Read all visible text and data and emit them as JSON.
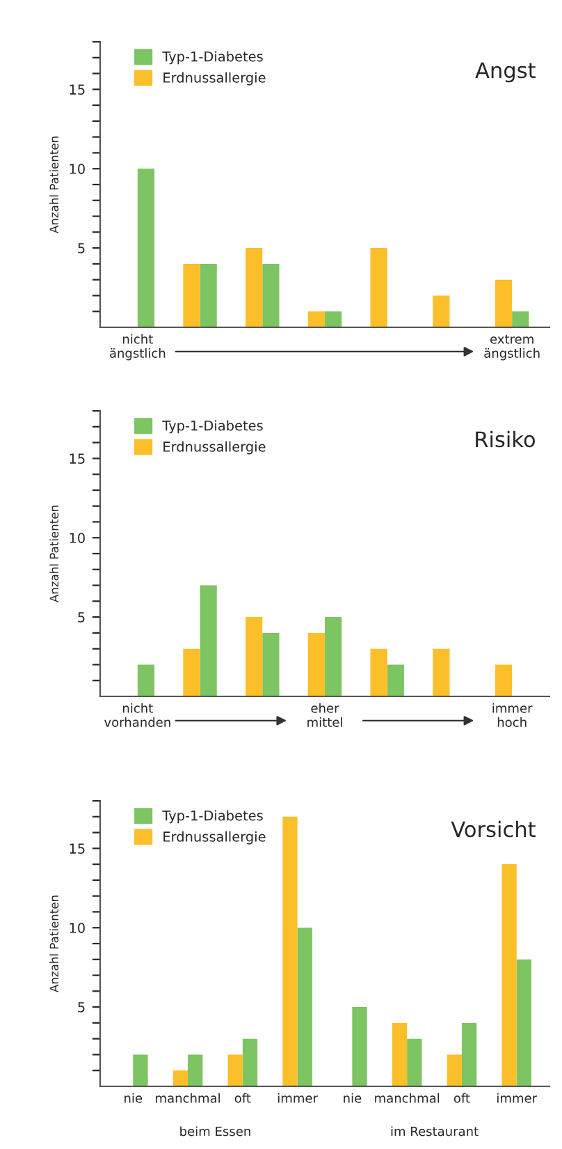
{
  "chart_data": [
    {
      "type": "bar",
      "title": "Angst",
      "ylabel": "Anzahl Patienten",
      "categories": [
        "nicht ängstlich",
        null,
        null,
        null,
        null,
        null,
        "extrem ängstlich"
      ],
      "ylim": [
        0,
        18
      ],
      "yticks": [
        {
          "value": 1,
          "label": null
        },
        {
          "value": 2,
          "label": null
        },
        {
          "value": 3,
          "label": null
        },
        {
          "value": 4,
          "label": null
        },
        5,
        {
          "value": 6,
          "label": null
        },
        {
          "value": 7,
          "label": null
        },
        {
          "value": 8,
          "label": null
        },
        {
          "value": 9,
          "label": null
        },
        10,
        {
          "value": 11,
          "label": null
        },
        {
          "value": 12,
          "label": null
        },
        {
          "value": 13,
          "label": null
        },
        {
          "value": 14,
          "label": null
        },
        15,
        {
          "value": 16,
          "label": null
        },
        {
          "value": 17,
          "label": null
        },
        {
          "value": 18,
          "label": null
        }
      ],
      "legend": "top left",
      "grid": false,
      "series": [
        {
          "name": "Typ-1-Diabetes",
          "color": "#7dc462",
          "values": [
            10,
            4,
            4,
            1,
            null,
            null,
            1
          ]
        },
        {
          "name": "Erdnussallergie",
          "color": "#fbbf2a",
          "values": [
            null,
            4,
            5,
            1,
            5,
            2,
            3
          ]
        }
      ]
    },
    {
      "type": "bar",
      "title": "Risiko",
      "ylabel": "Anzahl Patienten",
      "categories": [
        "nicht vorhanden",
        null,
        null,
        "eher mittel",
        null,
        null,
        "immer hoch"
      ],
      "ylim": [
        0,
        18
      ],
      "yticks": [
        {
          "value": 1,
          "label": null
        },
        {
          "value": 2,
          "label": null
        },
        {
          "value": 3,
          "label": null
        },
        {
          "value": 4,
          "label": null
        },
        5,
        {
          "value": 6,
          "label": null
        },
        {
          "value": 7,
          "label": null
        },
        {
          "value": 8,
          "label": null
        },
        {
          "value": 9,
          "label": null
        },
        10,
        {
          "value": 11,
          "label": null
        },
        {
          "value": 12,
          "label": null
        },
        {
          "value": 13,
          "label": null
        },
        {
          "value": 14,
          "label": null
        },
        15,
        {
          "value": 16,
          "label": null
        },
        {
          "value": 17,
          "label": null
        },
        {
          "value": 18,
          "label": null
        }
      ],
      "legend": "top left",
      "grid": false,
      "series": [
        {
          "name": "Typ-1-Diabetes",
          "color": "#7dc462",
          "values": [
            2,
            7,
            4,
            5,
            2,
            null,
            null
          ]
        },
        {
          "name": "Erdnussallergie",
          "color": "#fbbf2a",
          "values": [
            null,
            3,
            5,
            4,
            3,
            3,
            2
          ]
        }
      ]
    },
    {
      "type": "bar",
      "title": "Vorsicht",
      "ylabel": "Anzahl Patienten",
      "categories": [
        "nie",
        "manchmal",
        "oft",
        "immer",
        "nie",
        "manchmal",
        "oft",
        "immer"
      ],
      "ylim": [
        0,
        18
      ],
      "yticks": [
        {
          "value": 1,
          "label": null
        },
        {
          "value": 2,
          "label": null
        },
        {
          "value": 3,
          "label": null
        },
        {
          "value": 4,
          "label": null
        },
        5,
        {
          "value": 6,
          "label": null
        },
        {
          "value": 7,
          "label": null
        },
        {
          "value": 8,
          "label": null
        },
        {
          "value": 9,
          "label": null
        },
        10,
        {
          "value": 11,
          "label": null
        },
        {
          "value": 12,
          "label": null
        },
        {
          "value": 13,
          "label": null
        },
        {
          "value": 14,
          "label": null
        },
        15,
        {
          "value": 16,
          "label": null
        },
        {
          "value": 17,
          "label": null
        },
        {
          "value": 18,
          "label": null
        }
      ],
      "legend": "top left",
      "grid": false,
      "annotations": [
        "beim Essen",
        "im Restaurant"
      ],
      "series": [
        {
          "name": "Typ-1-Diabetes",
          "color": "#7dc462",
          "values": [
            2,
            2,
            3,
            10,
            5,
            3,
            4,
            8
          ]
        },
        {
          "name": "Erdnussallergie",
          "color": "#fbbf2a",
          "values": [
            null,
            1,
            2,
            17,
            null,
            4,
            2,
            14
          ]
        }
      ]
    }
  ]
}
